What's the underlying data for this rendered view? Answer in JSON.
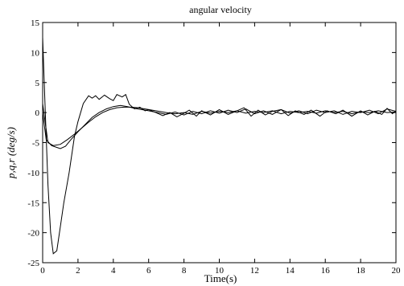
{
  "chart_data": {
    "type": "line",
    "title": "angular velocity",
    "xlabel": "Time(s)",
    "ylabel": "p,q,r (deg/s)",
    "xlim": [
      0,
      20
    ],
    "ylim": [
      -25,
      15
    ],
    "xticks": [
      0,
      2,
      4,
      6,
      8,
      10,
      12,
      14,
      16,
      18,
      20
    ],
    "yticks": [
      -25,
      -20,
      -15,
      -10,
      -5,
      0,
      5,
      10,
      15
    ],
    "grid": false,
    "legend": "none",
    "line_color": "#000000",
    "series": [
      {
        "x": [
          0,
          0.15,
          0.3,
          0.45,
          0.6,
          0.8,
          1.0,
          1.2,
          1.5,
          1.8,
          2.0,
          2.3,
          2.6,
          2.8,
          3.0,
          3.2,
          3.5,
          3.8,
          4.0,
          4.2,
          4.5,
          4.7,
          4.9,
          5.2,
          5.5,
          5.8,
          6.0,
          6.4,
          6.8,
          7.2,
          7.6,
          8.0,
          8.3,
          8.7,
          9.0,
          9.5,
          10.0,
          10.5,
          11.0,
          11.4,
          11.8,
          12.2,
          12.6,
          13.0,
          13.5,
          13.9,
          14.3,
          14.8,
          15.2,
          15.7,
          16.1,
          16.6,
          17.0,
          17.5,
          18.0,
          18.4,
          18.8,
          19.2,
          19.5,
          19.8,
          20.0
        ],
        "values": [
          12.5,
          0,
          -12,
          -20,
          -23.5,
          -23,
          -19,
          -15,
          -10,
          -4,
          -1.5,
          1.5,
          2.8,
          2.4,
          2.8,
          2.2,
          2.9,
          2.3,
          2.0,
          3.0,
          2.6,
          3.0,
          1.4,
          0.6,
          0.9,
          0.3,
          0.5,
          0.0,
          -0.5,
          0.0,
          -0.7,
          -0.1,
          0.4,
          -0.6,
          0.3,
          -0.4,
          0.5,
          -0.3,
          0.3,
          0.8,
          -0.6,
          0.4,
          -0.4,
          0.2,
          0.5,
          -0.5,
          0.3,
          -0.3,
          0.4,
          -0.6,
          0.3,
          -0.2,
          0.4,
          -0.6,
          0.3,
          -0.4,
          0.2,
          -0.3,
          0.7,
          -0.2,
          0.3
        ]
      },
      {
        "x": [
          0,
          0.2,
          0.5,
          0.8,
          1.0,
          1.3,
          1.6,
          2.0,
          2.4,
          2.8,
          3.2,
          3.6,
          4.0,
          4.4,
          4.8,
          5.2,
          5.6,
          6.0,
          6.5,
          7.0,
          7.5,
          8.0,
          8.5,
          9.0,
          9.5,
          10.0,
          10.5,
          11.0,
          11.5,
          12.0,
          12.5,
          13.0,
          13.5,
          14.0,
          14.5,
          15.0,
          15.5,
          16.0,
          16.5,
          17.0,
          17.5,
          18.0,
          18.5,
          19.0,
          19.5,
          20.0
        ],
        "values": [
          0,
          -4.5,
          -5.5,
          -5.8,
          -6.0,
          -5.6,
          -4.5,
          -3.2,
          -2.0,
          -0.8,
          0.0,
          0.6,
          1.0,
          1.2,
          1.0,
          0.7,
          0.5,
          0.3,
          0.0,
          -0.3,
          0.1,
          -0.4,
          0.2,
          -0.2,
          0.3,
          -0.1,
          0.4,
          0.0,
          0.6,
          -0.2,
          0.3,
          -0.3,
          0.5,
          -0.1,
          0.3,
          -0.2,
          0.4,
          0.0,
          0.3,
          -0.3,
          0.2,
          0.0,
          0.4,
          -0.2,
          0.6,
          0.2
        ]
      },
      {
        "x": [
          0,
          0.3,
          0.6,
          1.0,
          1.4,
          1.8,
          2.2,
          2.6,
          3.0,
          3.4,
          3.8,
          4.2,
          4.6,
          5.0,
          5.4,
          5.8,
          6.2,
          6.6,
          7.0,
          7.5,
          8.0,
          8.5,
          9.0,
          9.5,
          10.0,
          10.5,
          11.0,
          11.5,
          12.0,
          12.5,
          13.0,
          13.5,
          14.0,
          14.5,
          15.0,
          15.5,
          16.0,
          16.5,
          17.0,
          17.5,
          18.0,
          18.5,
          19.0,
          19.5,
          20.0
        ],
        "values": [
          1.5,
          -5.0,
          -5.5,
          -5.3,
          -4.5,
          -3.6,
          -2.6,
          -1.6,
          -0.7,
          0.0,
          0.5,
          0.8,
          0.9,
          0.9,
          0.8,
          0.6,
          0.4,
          0.2,
          0.0,
          -0.2,
          0.0,
          -0.3,
          0.2,
          -0.1,
          0.2,
          0.0,
          0.3,
          -0.1,
          0.2,
          0.0,
          0.3,
          -0.2,
          0.2,
          0.0,
          0.2,
          -0.1,
          0.3,
          0.0,
          0.2,
          -0.2,
          0.1,
          0.0,
          0.3,
          0.0,
          0.1
        ]
      }
    ]
  }
}
